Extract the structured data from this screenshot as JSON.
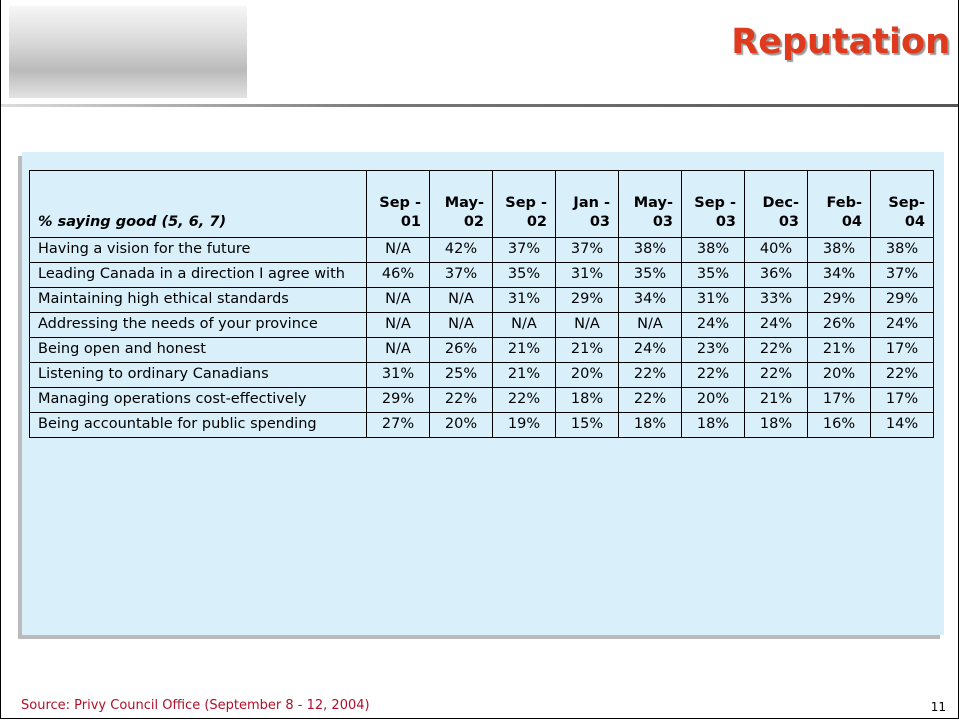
{
  "header": {
    "title": "Reputation"
  },
  "table": {
    "columns": [
      "% saying good (5, 6, 7)",
      "Sep -\n01",
      "May-\n02",
      "Sep -\n02",
      "Jan -\n03",
      "May-\n03",
      "Sep -\n03",
      "Dec-\n03",
      "Feb-\n04",
      "Sep-\n04"
    ],
    "rows": [
      [
        "Having a vision for the future",
        "N/A",
        "42%",
        "37%",
        "37%",
        "38%",
        "38%",
        "40%",
        "38%",
        "38%"
      ],
      [
        "Leading Canada in a direction I agree with",
        "46%",
        "37%",
        "35%",
        "31%",
        "35%",
        "35%",
        "36%",
        "34%",
        "37%"
      ],
      [
        "Maintaining high ethical standards",
        "N/A",
        "N/A",
        "31%",
        "29%",
        "34%",
        "31%",
        "33%",
        "29%",
        "29%"
      ],
      [
        "Addressing the needs of your province",
        "N/A",
        "N/A",
        "N/A",
        "N/A",
        "N/A",
        "24%",
        "24%",
        "26%",
        "24%"
      ],
      [
        "Being open and honest",
        "N/A",
        "26%",
        "21%",
        "21%",
        "24%",
        "23%",
        "22%",
        "21%",
        "17%"
      ],
      [
        "Listening to ordinary Canadians",
        "31%",
        "25%",
        "21%",
        "20%",
        "22%",
        "22%",
        "22%",
        "20%",
        "22%"
      ],
      [
        "Managing operations cost-effectively",
        "29%",
        "22%",
        "22%",
        "18%",
        "22%",
        "20%",
        "21%",
        "17%",
        "17%"
      ],
      [
        "Being accountable for public spending",
        "27%",
        "20%",
        "19%",
        "15%",
        "18%",
        "18%",
        "18%",
        "16%",
        "14%"
      ]
    ]
  },
  "footer": {
    "source": "Source: Privy Council Office (September 8 - 12, 2004)",
    "page": "11"
  }
}
